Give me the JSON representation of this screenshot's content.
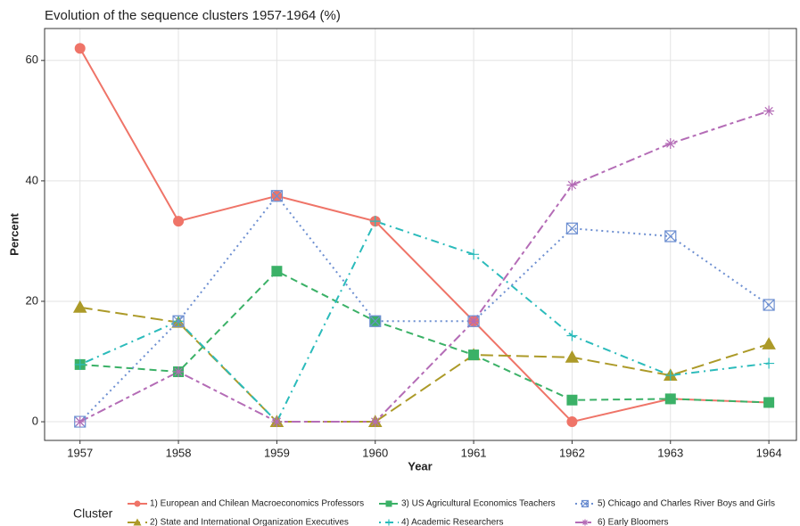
{
  "chart_data": {
    "type": "line",
    "title": "Evolution of the sequence clusters 1957-1964 (%)",
    "x_label": "Year",
    "y_label": "Percent",
    "x": [
      1957,
      1958,
      1959,
      1960,
      1961,
      1962,
      1963,
      1964
    ],
    "xlim": [
      1956.64,
      1964.28
    ],
    "xticks": [
      1957,
      1958,
      1959,
      1960,
      1961,
      1962,
      1963,
      1964
    ],
    "ylim": [
      -3.1,
      65.3
    ],
    "yticks": [
      0,
      20,
      40,
      60
    ],
    "grid": true,
    "legend_position": "bottom",
    "legend_title": "Cluster",
    "series": [
      {
        "name": "1) European and Chilean Macroeconomics Professors",
        "color": "#ef7468",
        "dash": "solid",
        "marker": "circle",
        "values": [
          62,
          33.3,
          37.5,
          33.3,
          16.7,
          0,
          3.8,
          3.2
        ]
      },
      {
        "name": "2) State and International Organization Executives",
        "color": "#ac9a28",
        "dash": "longdash",
        "marker": "triangle",
        "values": [
          19.0,
          16.5,
          0,
          0,
          11.1,
          10.7,
          7.7,
          12.9
        ]
      },
      {
        "name": "3) US Agricultural Economics Teachers",
        "color": "#3bb167",
        "dash": "dashed",
        "marker": "square",
        "values": [
          9.5,
          8.3,
          25,
          16.7,
          11.1,
          3.6,
          3.8,
          3.2
        ]
      },
      {
        "name": "4) Academic Researchers",
        "color": "#2bbbbb",
        "dash": "dotdash",
        "marker": "plus",
        "values": [
          9.5,
          16.7,
          0,
          33.3,
          27.8,
          14.3,
          7.7,
          9.7
        ]
      },
      {
        "name": "5) Chicago and Charles River Boys and Girls",
        "color": "#6d8fd1",
        "dash": "dotted",
        "marker": "boxx",
        "values": [
          0,
          16.7,
          37.5,
          16.7,
          16.7,
          32.1,
          30.8,
          19.4
        ]
      },
      {
        "name": "6) Early Bloomers",
        "color": "#b46cb6",
        "dash": "twodash",
        "marker": "asterisk",
        "values": [
          0,
          8.3,
          0,
          0,
          16.7,
          39.3,
          46.2,
          51.6
        ]
      }
    ]
  }
}
